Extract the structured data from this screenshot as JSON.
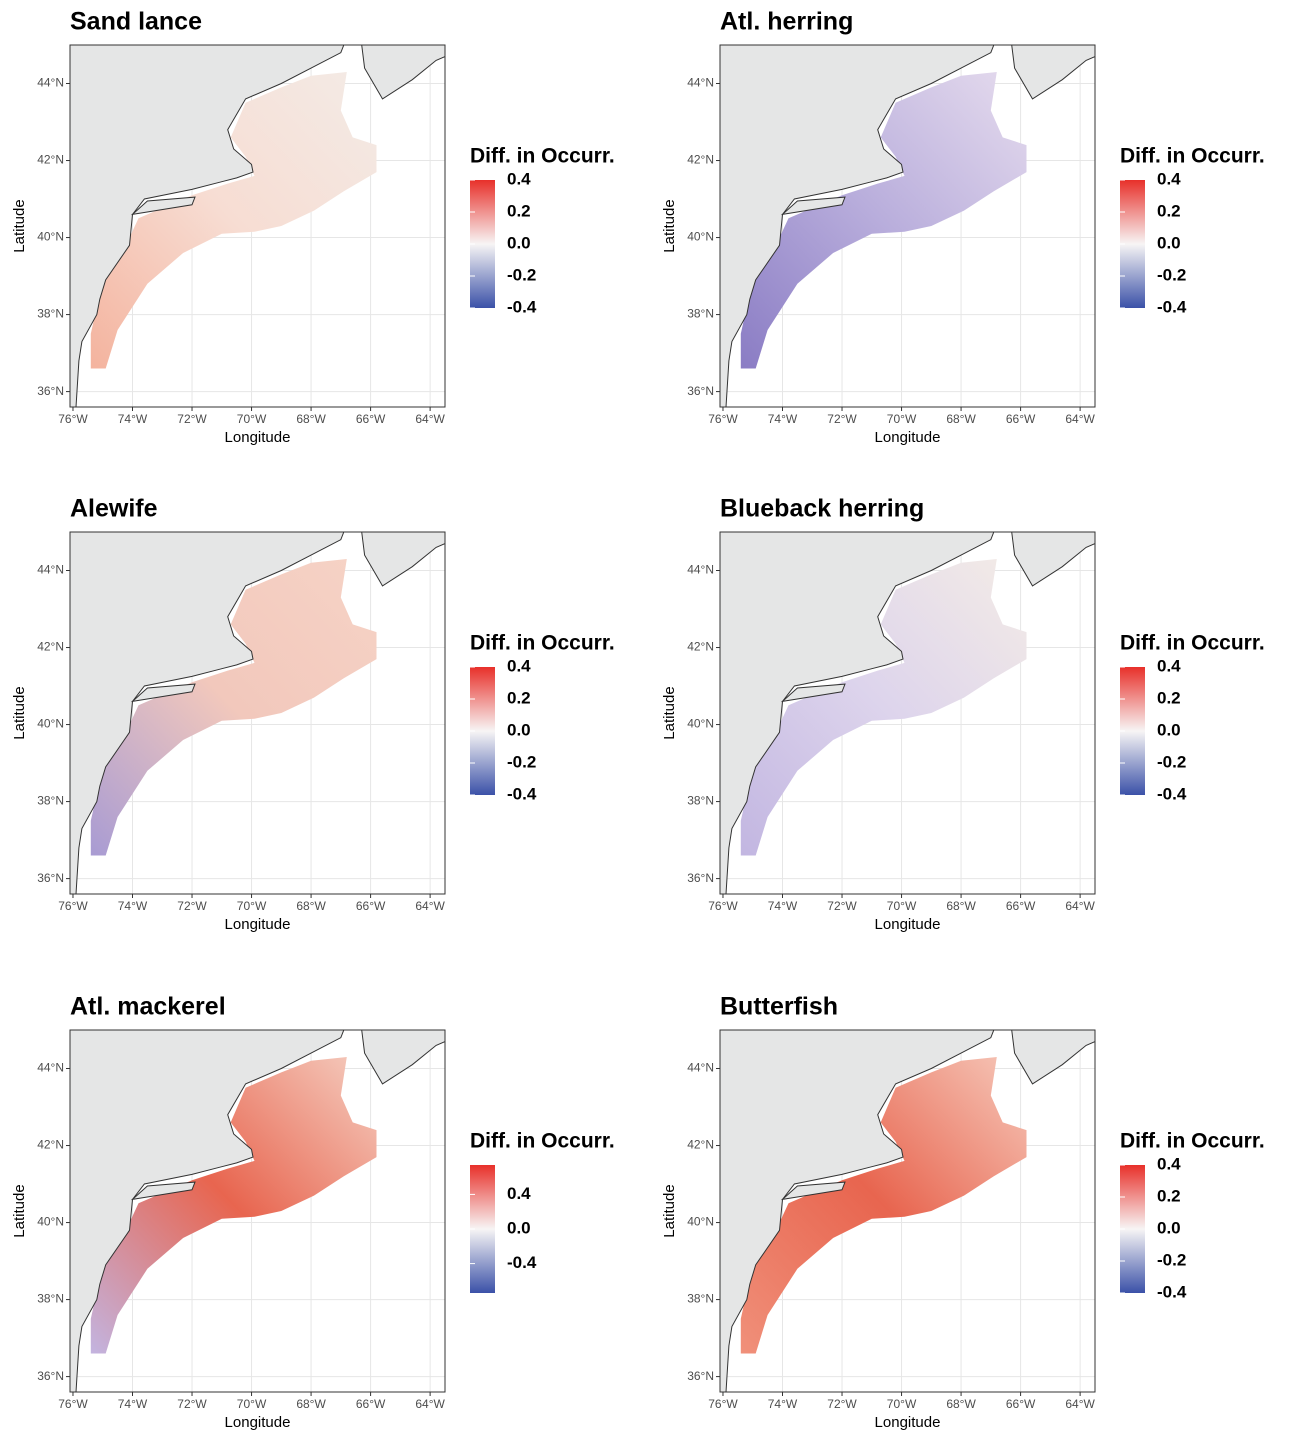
{
  "panels": [
    {
      "title": "Sand lance",
      "x_label": "Longitude",
      "y_label": "Latitude",
      "xlim": [
        -76.1,
        -63.5
      ],
      "ylim": [
        35.6,
        45
      ],
      "xticks": [
        {
          "value": -76,
          "label": "76°W"
        },
        {
          "value": -74,
          "label": "74°W"
        },
        {
          "value": -72,
          "label": "72°W"
        },
        {
          "value": -70,
          "label": "70°W"
        },
        {
          "value": -68,
          "label": "68°W"
        },
        {
          "value": -66,
          "label": "66°W"
        },
        {
          "value": -64,
          "label": "64°W"
        }
      ],
      "yticks": [
        {
          "value": 36,
          "label": "36°N"
        },
        {
          "value": 38,
          "label": "38°N"
        },
        {
          "value": 40,
          "label": "40°N"
        },
        {
          "value": 42,
          "label": "42°N"
        },
        {
          "value": 44,
          "label": "44°N"
        }
      ],
      "legend": {
        "title": "Diff. in Occurr.",
        "lim": [
          -0.4,
          0.4
        ],
        "ticks": [
          0.4,
          0.2,
          {
            "value": 0,
            "label": "0.0"
          },
          -0.2,
          -0.4
        ]
      }
    },
    {
      "title": "Atl. herring",
      "x_label": "Longitude",
      "y_label": "Latitude",
      "xlim": [
        -76.1,
        -63.5
      ],
      "ylim": [
        35.6,
        45
      ],
      "xticks": [
        {
          "value": -76,
          "label": "76°W"
        },
        {
          "value": -74,
          "label": "74°W"
        },
        {
          "value": -72,
          "label": "72°W"
        },
        {
          "value": -70,
          "label": "70°W"
        },
        {
          "value": -68,
          "label": "68°W"
        },
        {
          "value": -66,
          "label": "66°W"
        },
        {
          "value": -64,
          "label": "64°W"
        }
      ],
      "yticks": [
        {
          "value": 36,
          "label": "36°N"
        },
        {
          "value": 38,
          "label": "38°N"
        },
        {
          "value": 40,
          "label": "40°N"
        },
        {
          "value": 42,
          "label": "42°N"
        },
        {
          "value": 44,
          "label": "44°N"
        }
      ],
      "legend": {
        "title": "Diff. in Occurr.",
        "lim": [
          -0.4,
          0.4
        ],
        "ticks": [
          0.4,
          0.2,
          {
            "value": 0,
            "label": "0.0"
          },
          -0.2,
          -0.4
        ]
      }
    },
    {
      "title": "Alewife",
      "x_label": "Longitude",
      "y_label": "Latitude",
      "xlim": [
        -76.1,
        -63.5
      ],
      "ylim": [
        35.6,
        45
      ],
      "xticks": [
        {
          "value": -76,
          "label": "76°W"
        },
        {
          "value": -74,
          "label": "74°W"
        },
        {
          "value": -72,
          "label": "72°W"
        },
        {
          "value": -70,
          "label": "70°W"
        },
        {
          "value": -68,
          "label": "68°W"
        },
        {
          "value": -66,
          "label": "66°W"
        },
        {
          "value": -64,
          "label": "64°W"
        }
      ],
      "yticks": [
        {
          "value": 36,
          "label": "36°N"
        },
        {
          "value": 38,
          "label": "38°N"
        },
        {
          "value": 40,
          "label": "40°N"
        },
        {
          "value": 42,
          "label": "42°N"
        },
        {
          "value": 44,
          "label": "44°N"
        }
      ],
      "legend": {
        "title": "Diff. in Occurr.",
        "lim": [
          -0.4,
          0.4
        ],
        "ticks": [
          0.4,
          0.2,
          {
            "value": 0,
            "label": "0.0"
          },
          -0.2,
          -0.4
        ]
      }
    },
    {
      "title": "Blueback herring",
      "x_label": "Longitude",
      "y_label": "Latitude",
      "xlim": [
        -76.1,
        -63.5
      ],
      "ylim": [
        35.6,
        45
      ],
      "xticks": [
        {
          "value": -76,
          "label": "76°W"
        },
        {
          "value": -74,
          "label": "74°W"
        },
        {
          "value": -72,
          "label": "72°W"
        },
        {
          "value": -70,
          "label": "70°W"
        },
        {
          "value": -68,
          "label": "68°W"
        },
        {
          "value": -66,
          "label": "66°W"
        },
        {
          "value": -64,
          "label": "64°W"
        }
      ],
      "yticks": [
        {
          "value": 36,
          "label": "36°N"
        },
        {
          "value": 38,
          "label": "38°N"
        },
        {
          "value": 40,
          "label": "40°N"
        },
        {
          "value": 42,
          "label": "42°N"
        },
        {
          "value": 44,
          "label": "44°N"
        }
      ],
      "legend": {
        "title": "Diff. in Occurr.",
        "lim": [
          -0.4,
          0.4
        ],
        "ticks": [
          0.4,
          0.2,
          {
            "value": 0,
            "label": "0.0"
          },
          -0.2,
          -0.4
        ]
      }
    },
    {
      "title": "Atl. mackerel",
      "x_label": "Longitude",
      "y_label": "Latitude",
      "xlim": [
        -76.1,
        -63.5
      ],
      "ylim": [
        35.6,
        45
      ],
      "xticks": [
        {
          "value": -76,
          "label": "76°W"
        },
        {
          "value": -74,
          "label": "74°W"
        },
        {
          "value": -72,
          "label": "72°W"
        },
        {
          "value": -70,
          "label": "70°W"
        },
        {
          "value": -68,
          "label": "68°W"
        },
        {
          "value": -66,
          "label": "66°W"
        },
        {
          "value": -64,
          "label": "64°W"
        }
      ],
      "yticks": [
        {
          "value": 36,
          "label": "36°N"
        },
        {
          "value": 38,
          "label": "38°N"
        },
        {
          "value": 40,
          "label": "40°N"
        },
        {
          "value": 42,
          "label": "42°N"
        },
        {
          "value": 44,
          "label": "44°N"
        }
      ],
      "legend": {
        "title": "Diff. in Occurr.",
        "lim": [
          -0.74,
          0.74
        ],
        "ticks": [
          0.4,
          {
            "value": 0,
            "label": "0.0"
          },
          -0.4
        ]
      }
    },
    {
      "title": "Butterfish",
      "x_label": "Longitude",
      "y_label": "Latitude",
      "xlim": [
        -76.1,
        -63.5
      ],
      "ylim": [
        35.6,
        45
      ],
      "xticks": [
        {
          "value": -76,
          "label": "76°W"
        },
        {
          "value": -74,
          "label": "74°W"
        },
        {
          "value": -72,
          "label": "72°W"
        },
        {
          "value": -70,
          "label": "70°W"
        },
        {
          "value": -68,
          "label": "68°W"
        },
        {
          "value": -66,
          "label": "66°W"
        },
        {
          "value": -64,
          "label": "64°W"
        }
      ],
      "yticks": [
        {
          "value": 36,
          "label": "36°N"
        },
        {
          "value": 38,
          "label": "38°N"
        },
        {
          "value": 40,
          "label": "40°N"
        },
        {
          "value": 42,
          "label": "42°N"
        },
        {
          "value": 44,
          "label": "44°N"
        }
      ],
      "legend": {
        "title": "Diff. in Occurr.",
        "lim": [
          -0.4,
          0.4
        ],
        "ticks": [
          0.4,
          0.2,
          {
            "value": 0,
            "label": "0.0"
          },
          -0.2,
          -0.4
        ]
      }
    }
  ]
}
